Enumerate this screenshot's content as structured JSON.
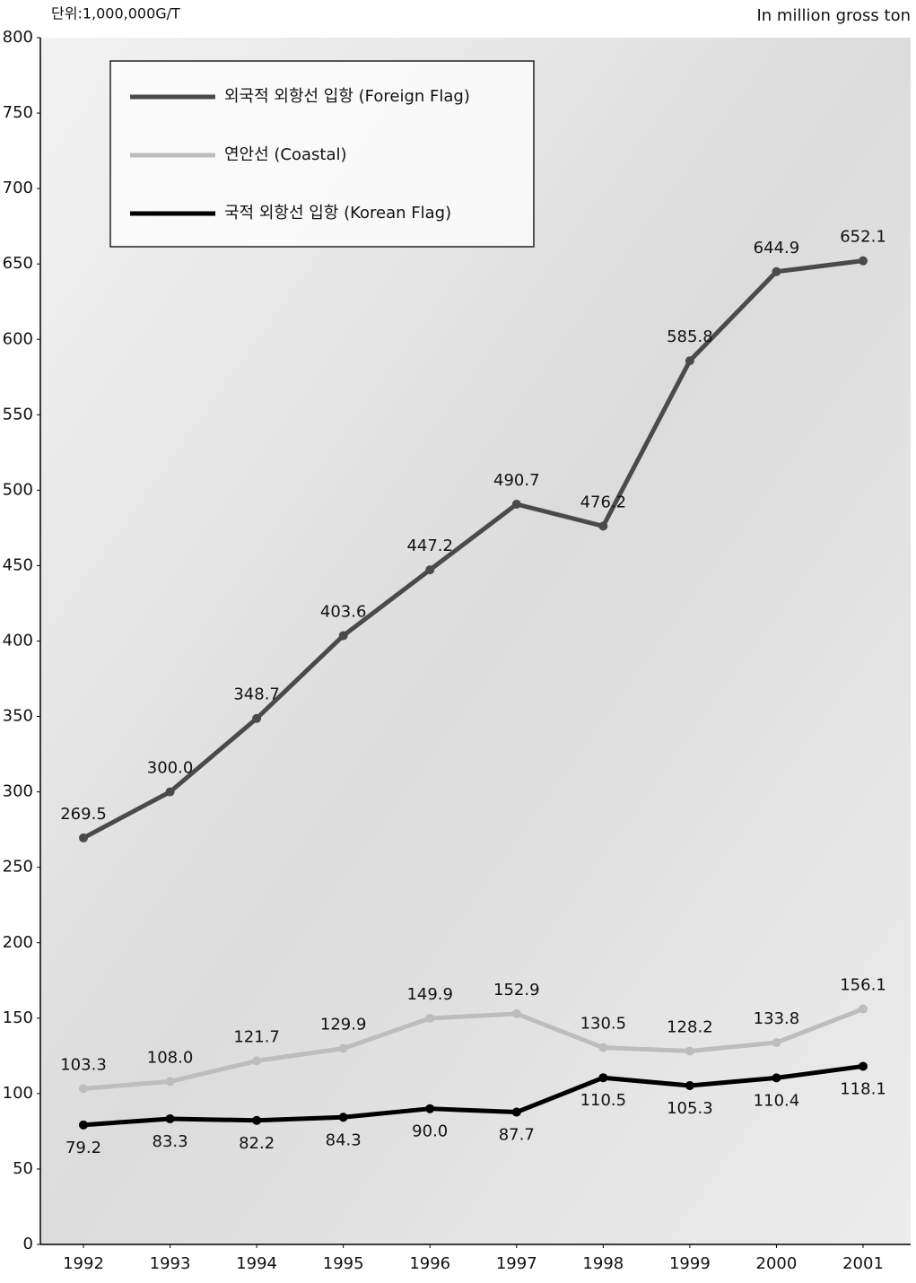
{
  "chart_data": {
    "type": "line",
    "unit_label": "단위:1,000,000G/T",
    "unit_label_en": "In million gross ton",
    "categories": [
      "1992",
      "1993",
      "1994",
      "1995",
      "1996",
      "1997",
      "1998",
      "1999",
      "2000",
      "2001"
    ],
    "series": [
      {
        "name": "외국적 외항선 입항 (Foreign Flag)",
        "color": "#4a4a4a",
        "label_side": "above",
        "values": [
          269.5,
          300.0,
          348.7,
          403.6,
          447.2,
          490.7,
          476.2,
          585.8,
          644.9,
          652.1
        ],
        "value_labels": [
          "269.5",
          "300.0",
          "348.7",
          "403.6",
          "447.2",
          "490.7",
          "476.2",
          "585.8",
          "644.9",
          "652.1"
        ]
      },
      {
        "name": "연안선 (Coastal)",
        "color": "#bdbdbd",
        "label_side": "above",
        "values": [
          103.3,
          108.0,
          121.7,
          129.9,
          149.9,
          152.9,
          130.5,
          128.2,
          133.8,
          156.1
        ],
        "value_labels": [
          "103.3",
          "108.0",
          "121.7",
          "129.9",
          "149.9",
          "152.9",
          "130.5",
          "128.2",
          "133.8",
          "156.1"
        ]
      },
      {
        "name": "국적 외항선 입항 (Korean Flag)",
        "color": "#000000",
        "label_side": "below",
        "values": [
          79.2,
          83.3,
          82.2,
          84.3,
          90.0,
          87.7,
          110.5,
          105.3,
          110.4,
          118.1
        ],
        "value_labels": [
          "79.2",
          "83.3",
          "82.2",
          "84.3",
          "90.0",
          "87.7",
          "110.5",
          "105.3",
          "110.4",
          "118.1"
        ]
      }
    ],
    "ylim": [
      0,
      800
    ],
    "yticks": [
      0,
      50,
      100,
      150,
      200,
      250,
      300,
      350,
      400,
      450,
      500,
      550,
      600,
      650,
      700,
      750,
      800
    ],
    "legend": "top-left"
  }
}
